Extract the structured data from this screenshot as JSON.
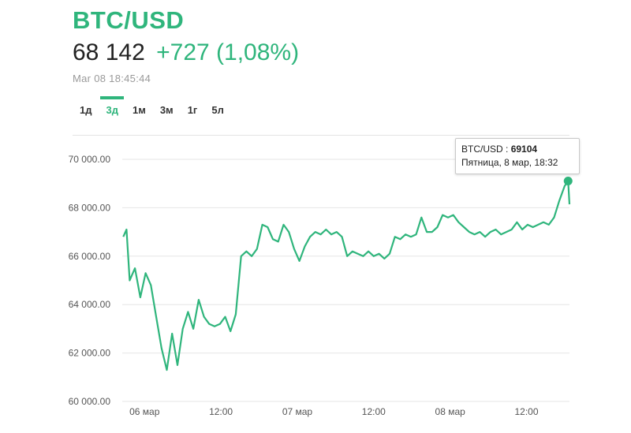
{
  "header": {
    "title": "BTC/USD",
    "price": "68 142",
    "change": "+727 (1,08%)",
    "timestamp": "Mar 08 18:45:44"
  },
  "tabs": [
    {
      "label": "1д",
      "active": false
    },
    {
      "label": "3д",
      "active": true
    },
    {
      "label": "1м",
      "active": false
    },
    {
      "label": "3м",
      "active": false
    },
    {
      "label": "1г",
      "active": false
    },
    {
      "label": "5л",
      "active": false
    }
  ],
  "tooltip": {
    "series": "BTC/USD",
    "separator": " : ",
    "value": "69104",
    "date": "Пятница, 8 мар, 18:32"
  },
  "colors": {
    "accent": "#2fb57c",
    "grid": "#e6e6e6",
    "axis_text": "#555555"
  },
  "chart_data": {
    "type": "line",
    "ylim": [
      60000,
      70000
    ],
    "y_ticks": [
      60000,
      62000,
      64000,
      66000,
      68000,
      70000
    ],
    "y_tick_labels": [
      "60 000.00",
      "62 000.00",
      "64 000.00",
      "66 000.00",
      "68 000.00",
      "70 000.00"
    ],
    "xlim": [
      "2024-03-05 20:30",
      "2024-03-08 18:45"
    ],
    "x_ticks": [
      "2024-03-06 00:00",
      "2024-03-06 12:00",
      "2024-03-07 00:00",
      "2024-03-07 12:00",
      "2024-03-08 00:00",
      "2024-03-08 12:00"
    ],
    "x_tick_labels": [
      "06 мар",
      "12:00",
      "07 мар",
      "12:00",
      "08 мар",
      "12:00"
    ],
    "grid": true,
    "legend": "none",
    "series": [
      {
        "highlight": {
          "x": "2024-03-08 18:32",
          "y": 69104
        },
        "points": [
          [
            "2024-03-05 20:40",
            66800
          ],
          [
            "2024-03-05 21:10",
            67100
          ],
          [
            "2024-03-05 21:40",
            65000
          ],
          [
            "2024-03-05 22:30",
            65500
          ],
          [
            "2024-03-05 23:20",
            64300
          ],
          [
            "2024-03-06 00:10",
            65300
          ],
          [
            "2024-03-06 01:00",
            64800
          ],
          [
            "2024-03-06 01:50",
            63500
          ],
          [
            "2024-03-06 02:40",
            62200
          ],
          [
            "2024-03-06 03:30",
            61300
          ],
          [
            "2024-03-06 04:20",
            62800
          ],
          [
            "2024-03-06 05:10",
            61500
          ],
          [
            "2024-03-06 06:00",
            63000
          ],
          [
            "2024-03-06 06:50",
            63700
          ],
          [
            "2024-03-06 07:40",
            63000
          ],
          [
            "2024-03-06 08:30",
            64200
          ],
          [
            "2024-03-06 09:20",
            63500
          ],
          [
            "2024-03-06 10:10",
            63200
          ],
          [
            "2024-03-06 11:00",
            63100
          ],
          [
            "2024-03-06 11:50",
            63200
          ],
          [
            "2024-03-06 12:40",
            63500
          ],
          [
            "2024-03-06 13:30",
            62900
          ],
          [
            "2024-03-06 14:20",
            63600
          ],
          [
            "2024-03-06 15:10",
            66000
          ],
          [
            "2024-03-06 16:00",
            66200
          ],
          [
            "2024-03-06 16:50",
            66000
          ],
          [
            "2024-03-06 17:40",
            66300
          ],
          [
            "2024-03-06 18:30",
            67300
          ],
          [
            "2024-03-06 19:20",
            67200
          ],
          [
            "2024-03-06 20:10",
            66700
          ],
          [
            "2024-03-06 21:00",
            66600
          ],
          [
            "2024-03-06 21:50",
            67300
          ],
          [
            "2024-03-06 22:40",
            67000
          ],
          [
            "2024-03-06 23:30",
            66300
          ],
          [
            "2024-03-07 00:20",
            65800
          ],
          [
            "2024-03-07 01:10",
            66400
          ],
          [
            "2024-03-07 02:00",
            66800
          ],
          [
            "2024-03-07 02:50",
            67000
          ],
          [
            "2024-03-07 03:40",
            66900
          ],
          [
            "2024-03-07 04:30",
            67100
          ],
          [
            "2024-03-07 05:20",
            66900
          ],
          [
            "2024-03-07 06:10",
            67000
          ],
          [
            "2024-03-07 07:00",
            66800
          ],
          [
            "2024-03-07 07:50",
            66000
          ],
          [
            "2024-03-07 08:40",
            66200
          ],
          [
            "2024-03-07 09:30",
            66100
          ],
          [
            "2024-03-07 10:20",
            66000
          ],
          [
            "2024-03-07 11:10",
            66200
          ],
          [
            "2024-03-07 12:00",
            66000
          ],
          [
            "2024-03-07 12:50",
            66100
          ],
          [
            "2024-03-07 13:40",
            65900
          ],
          [
            "2024-03-07 14:30",
            66100
          ],
          [
            "2024-03-07 15:20",
            66800
          ],
          [
            "2024-03-07 16:10",
            66700
          ],
          [
            "2024-03-07 17:00",
            66900
          ],
          [
            "2024-03-07 17:50",
            66800
          ],
          [
            "2024-03-07 18:40",
            66900
          ],
          [
            "2024-03-07 19:30",
            67600
          ],
          [
            "2024-03-07 20:20",
            67000
          ],
          [
            "2024-03-07 21:10",
            67000
          ],
          [
            "2024-03-07 22:00",
            67200
          ],
          [
            "2024-03-07 22:50",
            67700
          ],
          [
            "2024-03-07 23:40",
            67600
          ],
          [
            "2024-03-08 00:30",
            67700
          ],
          [
            "2024-03-08 01:20",
            67400
          ],
          [
            "2024-03-08 02:10",
            67200
          ],
          [
            "2024-03-08 03:00",
            67000
          ],
          [
            "2024-03-08 03:50",
            66900
          ],
          [
            "2024-03-08 04:40",
            67000
          ],
          [
            "2024-03-08 05:30",
            66800
          ],
          [
            "2024-03-08 06:20",
            67000
          ],
          [
            "2024-03-08 07:10",
            67100
          ],
          [
            "2024-03-08 08:00",
            66900
          ],
          [
            "2024-03-08 08:50",
            67000
          ],
          [
            "2024-03-08 09:40",
            67100
          ],
          [
            "2024-03-08 10:30",
            67400
          ],
          [
            "2024-03-08 11:20",
            67100
          ],
          [
            "2024-03-08 12:10",
            67300
          ],
          [
            "2024-03-08 13:00",
            67200
          ],
          [
            "2024-03-08 13:50",
            67300
          ],
          [
            "2024-03-08 14:40",
            67400
          ],
          [
            "2024-03-08 15:30",
            67300
          ],
          [
            "2024-03-08 16:20",
            67600
          ],
          [
            "2024-03-08 17:10",
            68300
          ],
          [
            "2024-03-08 18:00",
            68900
          ],
          [
            "2024-03-08 18:32",
            69104
          ],
          [
            "2024-03-08 18:45",
            68142
          ]
        ]
      }
    ]
  }
}
